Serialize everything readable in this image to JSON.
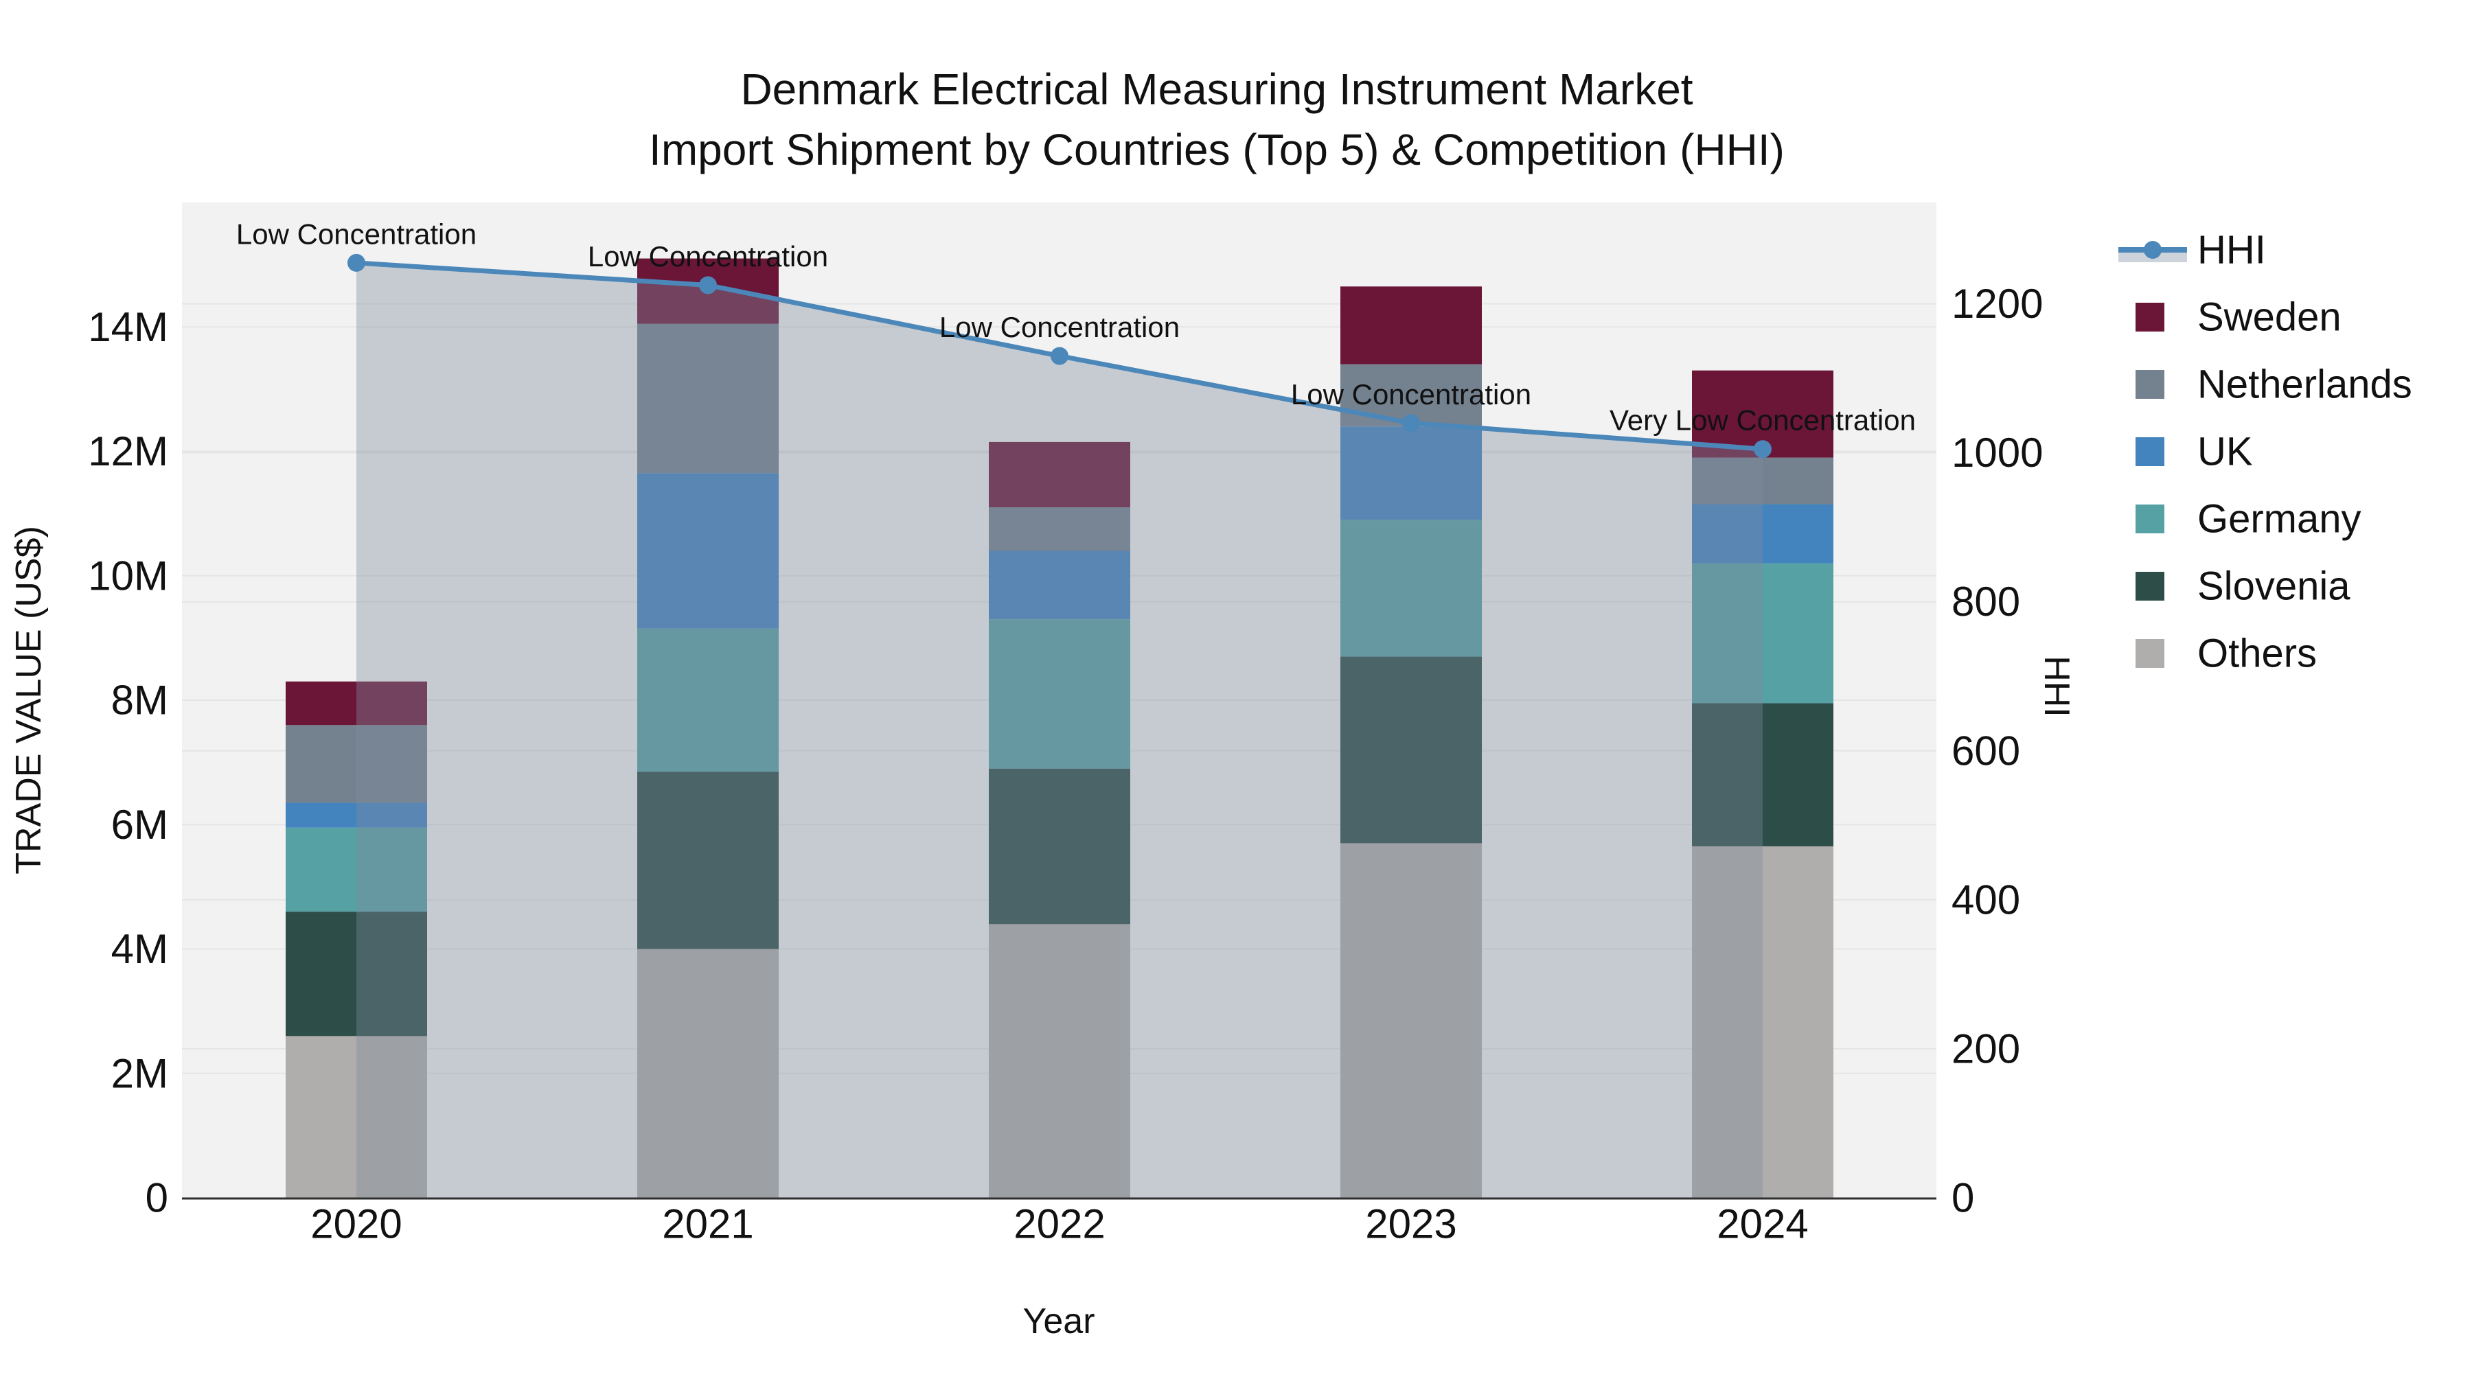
{
  "title": {
    "line1": "Denmark Electrical Measuring Instrument Market",
    "line2": "Import Shipment by Countries (Top 5) & Competition (HHI)"
  },
  "chart_data": {
    "type": "bar",
    "subtype": "stacked-bar-with-line",
    "categories": [
      "2020",
      "2021",
      "2022",
      "2023",
      "2024"
    ],
    "series": [
      {
        "name": "Others",
        "color": "#B0AEAC",
        "values": [
          2.6,
          4.0,
          4.4,
          5.7,
          5.65
        ]
      },
      {
        "name": "Slovenia",
        "color": "#2D4D48",
        "values": [
          2.0,
          2.85,
          2.5,
          3.0,
          2.3
        ]
      },
      {
        "name": "Germany",
        "color": "#56A1A4",
        "values": [
          1.35,
          2.3,
          2.4,
          2.2,
          2.25
        ]
      },
      {
        "name": "UK",
        "color": "#4384BE",
        "values": [
          0.4,
          2.5,
          1.1,
          1.5,
          0.95
        ]
      },
      {
        "name": "Netherlands",
        "color": "#74818F",
        "values": [
          1.25,
          2.4,
          0.7,
          1.0,
          0.75
        ]
      },
      {
        "name": "Sweden",
        "color": "#6B1537",
        "values": [
          0.7,
          1.05,
          1.05,
          1.25,
          1.4
        ]
      }
    ],
    "bar_totals_musd": [
      8.3,
      15.1,
      12.15,
      14.65,
      13.3
    ],
    "line": {
      "name": "HHI",
      "color": "#4B87B9",
      "fill": "rgba(126,139,158,0.38)",
      "values": [
        1255,
        1225,
        1130,
        1040,
        1005
      ]
    },
    "annotations": [
      "Low Concentration",
      "Low Concentration",
      "Low Concentration",
      "Low Concentration",
      "Very Low Concentration"
    ],
    "x": {
      "label": "Year"
    },
    "y_left": {
      "label": "TRADE VALUE (US$)",
      "ticks": [
        "0",
        "2M",
        "4M",
        "6M",
        "8M",
        "10M",
        "12M",
        "14M"
      ],
      "tick_values": [
        0,
        2,
        4,
        6,
        8,
        10,
        12,
        14
      ],
      "max": 16
    },
    "y_right": {
      "label": "HHI",
      "ticks": [
        "0",
        "200",
        "400",
        "600",
        "800",
        "1000",
        "1200"
      ],
      "tick_values": [
        0,
        200,
        400,
        600,
        800,
        1000,
        1200
      ],
      "max": 1336
    },
    "legend": [
      "HHI",
      "Sweden",
      "Netherlands",
      "UK",
      "Germany",
      "Slovenia",
      "Others"
    ],
    "colors": {
      "plot_bg": "#f2f2f2",
      "grid": "#e5e5e5",
      "axis_line": "#2f2f2f",
      "legend_band": "#ccd3da"
    }
  }
}
